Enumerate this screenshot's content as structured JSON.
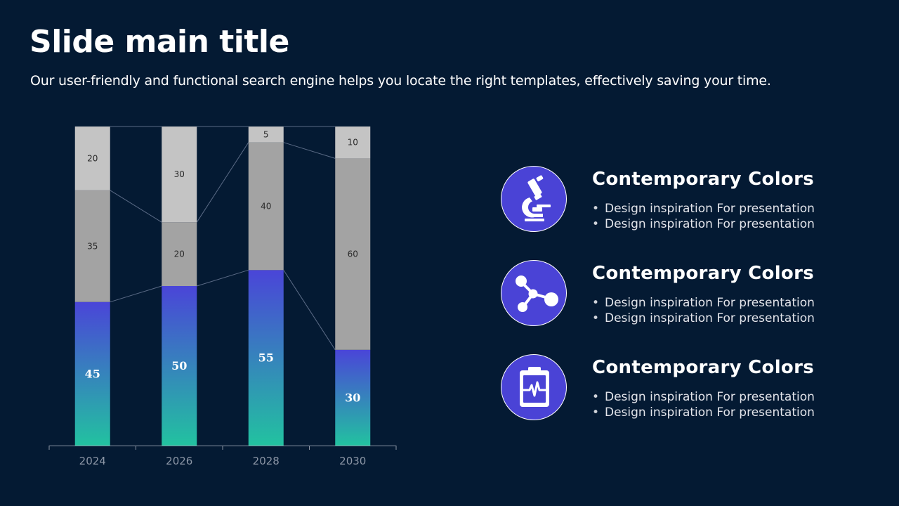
{
  "slide": {
    "title": "Slide main title",
    "subtitle": "Our user-friendly and functional search engine helps you locate the right templates, effectively saving your time."
  },
  "chart_data": {
    "type": "bar",
    "stacked": true,
    "categories": [
      "2024",
      "2026",
      "2028",
      "2030"
    ],
    "series": [
      {
        "values": [
          45,
          50,
          55,
          30
        ],
        "color": "gradient #4a45d8 to #22c2a0"
      },
      {
        "values": [
          35,
          20,
          40,
          60
        ],
        "color": "#a3a3a3"
      },
      {
        "values": [
          20,
          30,
          5,
          10
        ],
        "color": "#c4c4c4"
      }
    ],
    "ylim": [
      0,
      100
    ],
    "grid": false,
    "legend": "none",
    "series_lines": true
  },
  "features": [
    {
      "icon": "microscope-icon",
      "title": "Contemporary Colors",
      "bullets": [
        "Design inspiration For presentation",
        "Design inspiration For presentation"
      ]
    },
    {
      "icon": "molecule-icon",
      "title": "Contemporary Colors",
      "bullets": [
        "Design inspiration For presentation",
        "Design inspiration For presentation"
      ]
    },
    {
      "icon": "clipboard-heartbeat-icon",
      "title": "Contemporary Colors",
      "bullets": [
        "Design inspiration For presentation",
        "Design inspiration For presentation"
      ]
    }
  ],
  "colors": {
    "background": "#041a33",
    "accent": "#4a43d6",
    "gradient_top": "#4a45d8",
    "gradient_bottom": "#22c2a0"
  }
}
